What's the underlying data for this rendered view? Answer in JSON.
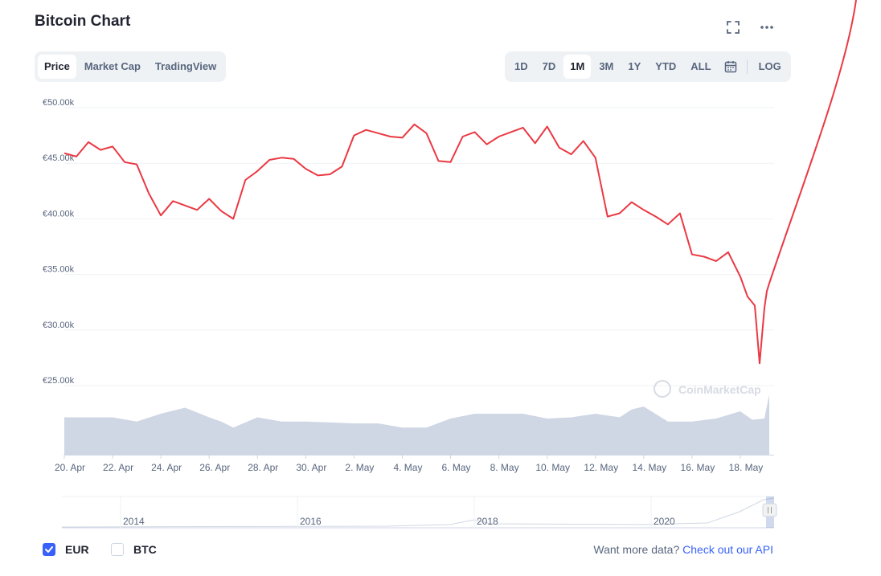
{
  "title": "Bitcoin Chart",
  "icons": {
    "fullscreen": "fullscreen-icon",
    "more": "more-icon",
    "calendar": "calendar-icon"
  },
  "tabs": [
    {
      "label": "Price",
      "active": true
    },
    {
      "label": "Market Cap",
      "active": false
    },
    {
      "label": "TradingView",
      "active": false
    }
  ],
  "ranges": [
    {
      "label": "1D",
      "active": false
    },
    {
      "label": "7D",
      "active": false
    },
    {
      "label": "1M",
      "active": true
    },
    {
      "label": "3M",
      "active": false
    },
    {
      "label": "1Y",
      "active": false
    },
    {
      "label": "YTD",
      "active": false
    },
    {
      "label": "ALL",
      "active": false
    }
  ],
  "log_label": "LOG",
  "watermark": "CoinMarketCap",
  "colors": {
    "line": "#ea3943",
    "volume": "#cfd6e4",
    "accent": "#3861fb",
    "grid": "#eff2f5",
    "text": "#58667e"
  },
  "chart_data": {
    "type": "line",
    "ylim": [
      25000,
      50000
    ],
    "y_ticks": [
      {
        "value": 50000,
        "label": "€50.00k"
      },
      {
        "value": 45000,
        "label": "€45.00k"
      },
      {
        "value": 40000,
        "label": "€40.00k"
      },
      {
        "value": 35000,
        "label": "€35.00k"
      },
      {
        "value": 30000,
        "label": "€30.00k"
      },
      {
        "value": 25000,
        "label": "€25.00k"
      }
    ],
    "x_ticks": [
      "20. Apr",
      "22. Apr",
      "24. Apr",
      "26. Apr",
      "28. Apr",
      "30. Apr",
      "2. May",
      "4. May",
      "6. May",
      "8. May",
      "10. May",
      "12. May",
      "14. May",
      "16. May",
      "18. May"
    ],
    "x_domain": [
      0,
      29.4
    ],
    "price": {
      "x": [
        0,
        0.5,
        1,
        1.5,
        2,
        2.5,
        3,
        3.5,
        4,
        4.5,
        5,
        5.5,
        6,
        6.5,
        7,
        7.5,
        8,
        8.5,
        9,
        9.5,
        10,
        10.5,
        11,
        11.5,
        12,
        12.5,
        13,
        13.5,
        14,
        14.5,
        15,
        15.5,
        16,
        16.5,
        17,
        17.5,
        18,
        18.5,
        19,
        19.5,
        20,
        20.5,
        21,
        21.5,
        22,
        22.5,
        23,
        23.5,
        24,
        24.5,
        25,
        25.5,
        26,
        26.5,
        27,
        27.5,
        28,
        28.3,
        28.6,
        28.8,
        29,
        29.1,
        29.2
      ],
      "y": [
        45900,
        45600,
        46900,
        46200,
        46500,
        45100,
        44900,
        42300,
        40300,
        41600,
        41200,
        40800,
        41800,
        40700,
        40000,
        43500,
        44300,
        45300,
        45500,
        45400,
        44500,
        43900,
        44000,
        44700,
        47500,
        48000,
        47700,
        47400,
        47300,
        48500,
        47700,
        45200,
        45100,
        47400,
        47800,
        46700,
        47400,
        47800,
        48200,
        46800,
        48300,
        46400,
        45800,
        47000,
        45500,
        40200,
        40500,
        41500,
        40800,
        40200,
        39500,
        40500,
        36800,
        36600,
        36200,
        37000,
        34800,
        33000,
        32200,
        27000,
        32000,
        33500,
        34200
      ]
    },
    "series": [
      {
        "name": "",
        "values": []
      }
    ],
    "volume": {
      "x": [
        0,
        2,
        3,
        4,
        5,
        6,
        6.5,
        7,
        8,
        9,
        10,
        12,
        13,
        14,
        15,
        16,
        17,
        18,
        19,
        20,
        21,
        22,
        23,
        23.5,
        24,
        25,
        26,
        27,
        28,
        28.5,
        29,
        29.2
      ],
      "v": [
        0.62,
        0.62,
        0.55,
        0.68,
        0.78,
        0.62,
        0.55,
        0.45,
        0.62,
        0.55,
        0.55,
        0.52,
        0.52,
        0.45,
        0.45,
        0.6,
        0.68,
        0.68,
        0.68,
        0.6,
        0.62,
        0.68,
        0.62,
        0.75,
        0.8,
        0.55,
        0.55,
        0.6,
        0.72,
        0.58,
        0.6,
        1.0
      ]
    },
    "navigator_ticks": [
      "2014",
      "2016",
      "2018",
      "2020"
    ],
    "grid": true,
    "legend": "none"
  },
  "currencies": [
    {
      "label": "EUR",
      "checked": true
    },
    {
      "label": "BTC",
      "checked": false
    }
  ],
  "api": {
    "text": "Want more data?",
    "link": "Check out our API"
  }
}
